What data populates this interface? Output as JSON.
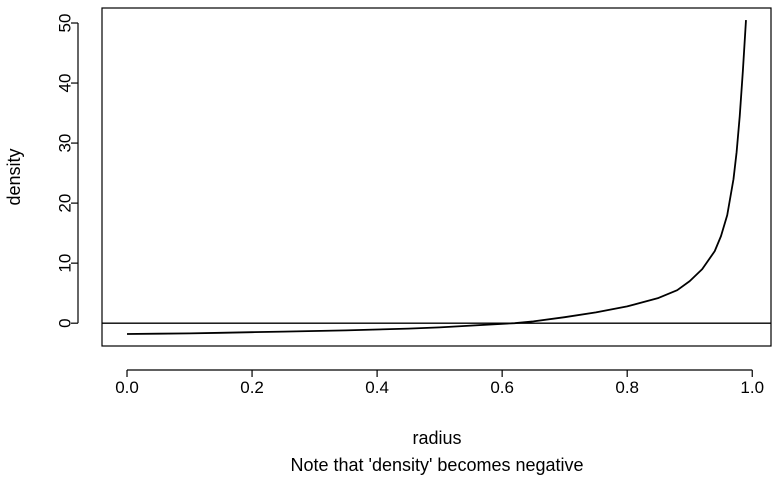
{
  "chart_data": {
    "type": "line",
    "title": "",
    "subtitle": "Note that 'density' becomes negative",
    "xlabel": "radius",
    "ylabel": "density",
    "xlim": [
      -0.04,
      1.03
    ],
    "ylim": [
      -3.8,
      52.5
    ],
    "x_ticks": [
      0.0,
      0.2,
      0.4,
      0.6,
      0.8,
      1.0
    ],
    "x_tick_labels": [
      "0.0",
      "0.2",
      "0.4",
      "0.6",
      "0.8",
      "1.0"
    ],
    "y_ticks": [
      0,
      10,
      20,
      30,
      40,
      50
    ],
    "y_tick_labels": [
      "0",
      "10",
      "20",
      "30",
      "40",
      "50"
    ],
    "grid": false,
    "reference_line": {
      "y": 0
    },
    "series": [
      {
        "color": "#000000",
        "x": [
          0.0,
          0.05,
          0.1,
          0.15,
          0.2,
          0.25,
          0.3,
          0.35,
          0.4,
          0.45,
          0.5,
          0.55,
          0.6,
          0.62,
          0.65,
          0.7,
          0.75,
          0.8,
          0.85,
          0.88,
          0.9,
          0.92,
          0.94,
          0.95,
          0.96,
          0.97,
          0.975,
          0.98,
          0.985,
          0.99
        ],
        "y": [
          -1.8,
          -1.75,
          -1.7,
          -1.6,
          -1.5,
          -1.4,
          -1.3,
          -1.2,
          -1.05,
          -0.9,
          -0.7,
          -0.4,
          -0.1,
          0.0,
          0.3,
          1.0,
          1.8,
          2.8,
          4.2,
          5.5,
          7.0,
          9.0,
          12.0,
          14.5,
          18.0,
          24.0,
          28.5,
          34.5,
          42.0,
          50.5
        ]
      }
    ]
  }
}
